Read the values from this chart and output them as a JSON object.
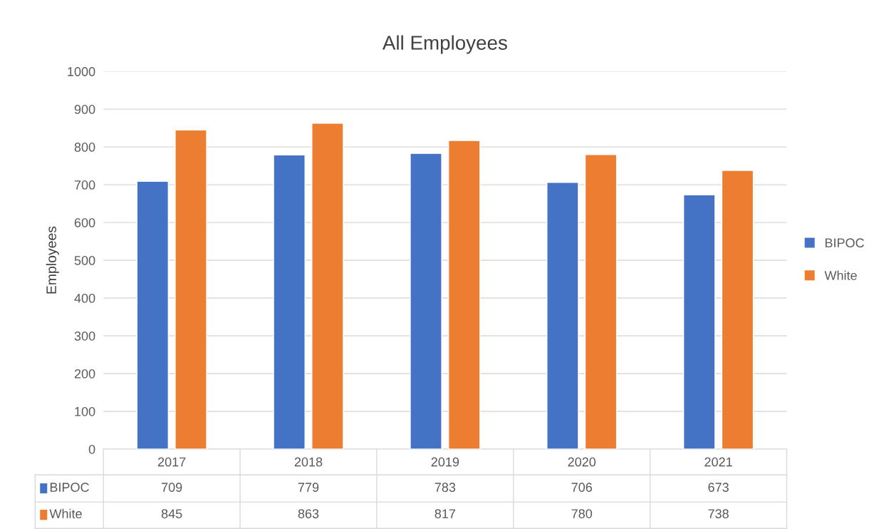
{
  "chart_data": {
    "type": "bar",
    "title": "All Employees",
    "ylabel": "Employees",
    "categories": [
      "2017",
      "2018",
      "2019",
      "2020",
      "2021"
    ],
    "series": [
      {
        "name": "BIPOC",
        "color": "#4472c4",
        "values": [
          709,
          779,
          783,
          706,
          673
        ]
      },
      {
        "name": "White",
        "color": "#ed7d31",
        "values": [
          845,
          863,
          817,
          780,
          738
        ]
      }
    ],
    "ylim": [
      0,
      1000
    ],
    "yticks": [
      0,
      100,
      200,
      300,
      400,
      500,
      600,
      700,
      800,
      900,
      1000
    ],
    "grid": "y",
    "legend": "right",
    "data_labels": true
  }
}
